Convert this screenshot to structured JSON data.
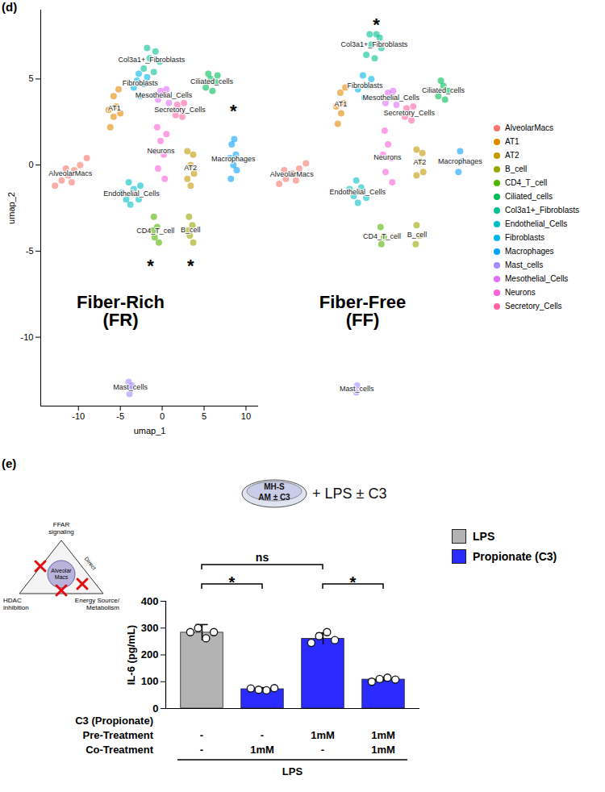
{
  "chart_data": [
    {
      "type": "scatter",
      "panel_label": "(d)",
      "x_label": "umap_1",
      "y_label": "umap_2",
      "xlim": [
        -14.5,
        11.5
      ],
      "ylim": [
        -14,
        9
      ],
      "xticks": [
        -10,
        -5,
        0,
        5,
        10
      ],
      "yticks": [
        -10,
        -5,
        0,
        5
      ],
      "legend": "right",
      "categories": [
        "AlveolarMacs",
        "AT1",
        "AT2",
        "B_cell",
        "CD4_T_cell",
        "Ciliated_cells",
        "Col3a1+_Fibroblasts",
        "Endothelial_Cells",
        "Fibroblasts",
        "Macrophages",
        "Mast_cells",
        "Mesothelial_Cells",
        "Neurons",
        "Secretory_Cells"
      ],
      "colors": [
        "#F8766D",
        "#E38900",
        "#C49A00",
        "#99A800",
        "#53B400",
        "#00BC56",
        "#00C094",
        "#00BFC4",
        "#00B6EB",
        "#06A4FF",
        "#A58AFF",
        "#DF70F8",
        "#FB61D7",
        "#FF66A8"
      ],
      "panels": [
        {
          "title": [
            "Fiber-Rich",
            "(FR)"
          ],
          "tick_labels": true,
          "series": [
            {
              "name": "AlveolarMacs",
              "points": [
                [
                  -12.8,
                  -1.2
                ],
                [
                  -12,
                  -0.9
                ],
                [
                  -11.2,
                  -0.6
                ],
                [
                  -10.5,
                  -0.3
                ],
                [
                  -9.8,
                  0
                ],
                [
                  -9,
                  0.4
                ],
                [
                  -10.8,
                  -1
                ],
                [
                  -11.5,
                  -0.2
                ]
              ]
            },
            {
              "name": "AT1",
              "points": [
                [
                  -6.2,
                  2.2
                ],
                [
                  -5.8,
                  2.8
                ],
                [
                  -5.5,
                  3.4
                ],
                [
                  -5.8,
                  4
                ],
                [
                  -5.2,
                  4.4
                ],
                [
                  -6.4,
                  3.2
                ],
                [
                  -5,
                  3
                ]
              ]
            },
            {
              "name": "AT2",
              "points": [
                [
                  3,
                  -0.8
                ],
                [
                  3.4,
                  0
                ],
                [
                  3.7,
                  0.6
                ],
                [
                  3,
                  0.8
                ],
                [
                  3.8,
                  -0.5
                ],
                [
                  3.4,
                  -1.2
                ]
              ]
            },
            {
              "name": "B_cell",
              "points": [
                [
                  3.2,
                  -3
                ],
                [
                  3.6,
                  -3.5
                ],
                [
                  3.3,
                  -4.1
                ],
                [
                  3.7,
                  -4.5
                ],
                [
                  3.1,
                  -3.8
                ]
              ]
            },
            {
              "name": "CD4_T_cell",
              "points": [
                [
                  -1,
                  -3
                ],
                [
                  -0.6,
                  -3.6
                ],
                [
                  -0.9,
                  -4.2
                ],
                [
                  -0.4,
                  -4.5
                ],
                [
                  -1.1,
                  -3.8
                ]
              ]
            },
            {
              "name": "Ciliated_cells",
              "points": [
                [
                  5.2,
                  4.5
                ],
                [
                  5.8,
                  5
                ],
                [
                  6.4,
                  4.8
                ],
                [
                  6,
                  4.3
                ],
                [
                  5.5,
                  5.3
                ],
                [
                  6.6,
                  5.2
                ]
              ]
            },
            {
              "name": "Col3a1+_Fibroblasts",
              "points": [
                [
                  -2.2,
                  5.6
                ],
                [
                  -1.5,
                  6.2
                ],
                [
                  -0.8,
                  6.6
                ],
                [
                  -1,
                  5.4
                ],
                [
                  -0.3,
                  6
                ],
                [
                  -1.8,
                  6.8
                ]
              ]
            },
            {
              "name": "Endothelial_Cells",
              "points": [
                [
                  -4.8,
                  -1.6
                ],
                [
                  -4,
                  -1
                ],
                [
                  -3.4,
                  -1.4
                ],
                [
                  -2.8,
                  -2
                ],
                [
                  -3.8,
                  -2.3
                ],
                [
                  -2.6,
                  -1.2
                ],
                [
                  -4.3,
                  -2
                ]
              ]
            },
            {
              "name": "Fibroblasts",
              "points": [
                [
                  -3.4,
                  4.5
                ],
                [
                  -2.8,
                  5.3
                ],
                [
                  -2.2,
                  4.7
                ],
                [
                  -2.6,
                  4
                ],
                [
                  -1.8,
                  5.1
                ],
                [
                  -3,
                  4.9
                ]
              ]
            },
            {
              "name": "Macrophages",
              "points": [
                [
                  8.2,
                  -0.8
                ],
                [
                  8.5,
                  0
                ],
                [
                  8.8,
                  0.6
                ],
                [
                  8.3,
                  1.2
                ],
                [
                  8.9,
                  -0.3
                ],
                [
                  8.6,
                  1.5
                ],
                [
                  8.1,
                  0.4
                ]
              ]
            },
            {
              "name": "Mast_cells",
              "points": [
                [
                  -4,
                  -12.6
                ],
                [
                  -3.7,
                  -13
                ],
                [
                  -3.9,
                  -13.3
                ],
                [
                  -3.6,
                  -12.8
                ]
              ]
            },
            {
              "name": "Mesothelial_Cells",
              "points": [
                [
                  -0.5,
                  3.8
                ],
                [
                  0.3,
                  4.1
                ],
                [
                  0.8,
                  3.6
                ],
                [
                  -0.2,
                  4.3
                ],
                [
                  0.5,
                  4.4
                ]
              ]
            },
            {
              "name": "Neurons",
              "points": [
                [
                  -0.6,
                  2.2
                ],
                [
                  -0.2,
                  1.4
                ],
                [
                  0.2,
                  0.6
                ],
                [
                  -0.5,
                  -0.2
                ],
                [
                  0.3,
                  -0.8
                ],
                [
                  -0.8,
                  0.8
                ],
                [
                  0.5,
                  1.8
                ]
              ]
            },
            {
              "name": "Secretory_Cells",
              "points": [
                [
                  1.6,
                  2.9
                ],
                [
                  2.2,
                  3.2
                ],
                [
                  2.6,
                  3.6
                ],
                [
                  1.8,
                  3.5
                ],
                [
                  2.4,
                  2.8
                ]
              ]
            }
          ],
          "annotations": [
            {
              "text": "*",
              "x": 8.5,
              "y": 3.4
            },
            {
              "text": "*",
              "x": -1.4,
              "y": -5.6
            },
            {
              "text": "*",
              "x": 3.4,
              "y": -5.6
            }
          ]
        },
        {
          "title": [
            "Fiber-Free",
            "(FF)"
          ],
          "tick_labels": false,
          "series": [
            {
              "name": "AlveolarMacs",
              "points": [
                [
                  -13,
                  -1.1
                ],
                [
                  -12.2,
                  -0.8
                ],
                [
                  -11.4,
                  -0.5
                ],
                [
                  -10.6,
                  -0.2
                ],
                [
                  -9.8,
                  0.1
                ],
                [
                  -11,
                  -0.9
                ],
                [
                  -12.4,
                  -0.3
                ]
              ]
            },
            {
              "name": "AT1",
              "points": [
                [
                  -6,
                  2.4
                ],
                [
                  -5.6,
                  3
                ],
                [
                  -5.3,
                  3.6
                ],
                [
                  -5.7,
                  4.2
                ],
                [
                  -5.1,
                  4.5
                ],
                [
                  -6.2,
                  3.4
                ]
              ]
            },
            {
              "name": "AT2",
              "points": [
                [
                  3.4,
                  -0.6
                ],
                [
                  3.8,
                  0.2
                ],
                [
                  4.1,
                  0.7
                ],
                [
                  3.4,
                  0.9
                ],
                [
                  4.2,
                  -0.4
                ]
              ]
            },
            {
              "name": "B_cell",
              "points": [
                [
                  3.4,
                  -3.5
                ],
                [
                  3.7,
                  -4.1
                ],
                [
                  3.3,
                  -4.6
                ]
              ]
            },
            {
              "name": "CD4_T_cell",
              "points": [
                [
                  -0.9,
                  -3.6
                ],
                [
                  -0.5,
                  -4.2
                ],
                [
                  -0.8,
                  -4.6
                ]
              ]
            },
            {
              "name": "Ciliated_cells",
              "points": [
                [
                  6,
                  4
                ],
                [
                  6.6,
                  4.6
                ],
                [
                  7.2,
                  4.3
                ],
                [
                  6.8,
                  3.8
                ],
                [
                  6.3,
                  4.9
                ]
              ]
            },
            {
              "name": "Col3a1+_Fibroblasts",
              "points": [
                [
                  -2.6,
                  6.4
                ],
                [
                  -2,
                  7
                ],
                [
                  -1.4,
                  7.6
                ],
                [
                  -1.6,
                  6.2
                ],
                [
                  -0.8,
                  6.8
                ],
                [
                  -2.2,
                  7.6
                ],
                [
                  -1,
                  7.4
                ]
              ]
            },
            {
              "name": "Endothelial_Cells",
              "points": [
                [
                  -4.6,
                  -1.4
                ],
                [
                  -3.8,
                  -0.9
                ],
                [
                  -3.2,
                  -1.3
                ],
                [
                  -2.6,
                  -1.9
                ],
                [
                  -3.6,
                  -2.2
                ],
                [
                  -4.1,
                  -1.8
                ]
              ]
            },
            {
              "name": "Fibroblasts",
              "points": [
                [
                  -3.6,
                  4.4
                ],
                [
                  -3,
                  5.2
                ],
                [
                  -2.4,
                  4.6
                ],
                [
                  -2.8,
                  3.9
                ],
                [
                  -2,
                  5
                ]
              ]
            },
            {
              "name": "Macrophages",
              "points": [
                [
                  8.4,
                  -0.4
                ],
                [
                  8.6,
                  0.8
                ],
                [
                  8.8,
                  0.2
                ]
              ]
            },
            {
              "name": "Mast_cells",
              "points": [
                [
                  -3.7,
                  -12.8
                ],
                [
                  -3.8,
                  -13.2
                ]
              ]
            },
            {
              "name": "Mesothelial_Cells",
              "points": [
                [
                  -0.3,
                  3.6
                ],
                [
                  0.5,
                  4
                ],
                [
                  1,
                  3.5
                ],
                [
                  0,
                  4.2
                ],
                [
                  0.6,
                  4.3
                ]
              ]
            },
            {
              "name": "Neurons",
              "points": [
                [
                  -0.4,
                  2
                ],
                [
                  0,
                  1.2
                ],
                [
                  0.4,
                  0.4
                ],
                [
                  -0.3,
                  -0.4
                ],
                [
                  0.5,
                  -1
                ],
                [
                  -0.6,
                  0.6
                ]
              ]
            },
            {
              "name": "Secretory_Cells",
              "points": [
                [
                  2,
                  2.8
                ],
                [
                  2.6,
                  3
                ],
                [
                  3,
                  3.4
                ],
                [
                  2.2,
                  3.3
                ],
                [
                  2.8,
                  2.6
                ]
              ]
            }
          ],
          "annotations": [
            {
              "text": "*",
              "x": -1.4,
              "y": 8.4
            }
          ]
        }
      ]
    },
    {
      "type": "bar",
      "panel_label": "(e)",
      "y_label": "IL-6 (pg/mL)",
      "ylim": [
        0,
        400
      ],
      "yticks": [
        0,
        100,
        200,
        300,
        400
      ],
      "tick_labels": "y",
      "categories": [
        null,
        null,
        null,
        null
      ],
      "values": [
        283,
        72,
        260,
        108
      ],
      "errors": [
        30,
        6,
        22,
        8
      ],
      "points": [
        [
          285,
          300,
          262,
          285
        ],
        [
          75,
          70,
          68,
          76
        ],
        [
          245,
          270,
          285,
          255
        ],
        [
          100,
          110,
          115,
          108
        ]
      ],
      "colors": [
        "#b3b3b3",
        "#2b2bff",
        "#2b2bff",
        "#2b2bff"
      ],
      "series": [
        {
          "name": "LPS",
          "color": "#b3b3b3"
        },
        {
          "name": "Propionate (C3)",
          "color": "#2b2bff"
        }
      ],
      "legend": "top-right",
      "comparisons": [
        {
          "between": [
            0,
            1
          ],
          "label": "*"
        },
        {
          "between": [
            2,
            3
          ],
          "label": "*"
        },
        {
          "between": [
            0,
            2
          ],
          "label": "ns"
        }
      ],
      "row_header": "C3 (Propionate)",
      "rows": [
        {
          "label": "Pre-Treatment",
          "cells": [
            "-",
            "-",
            "1mM",
            "1mM"
          ]
        },
        {
          "label": "Co-Treatment",
          "cells": [
            "-",
            "1mM",
            "-",
            "1mM"
          ]
        }
      ],
      "group_label": "LPS",
      "schematic": {
        "dish": [
          "MH-S",
          "AM ± C3"
        ],
        "treatment": "+ LPS ± C3"
      },
      "diagram": {
        "top": [
          "FFAR",
          "signaling"
        ],
        "left": [
          "HDAC",
          "inhibition"
        ],
        "right": [
          "Energy Source/",
          "Metabolism"
        ],
        "center": [
          "Alveolar",
          "Macs"
        ],
        "edge": "Direct"
      }
    }
  ]
}
